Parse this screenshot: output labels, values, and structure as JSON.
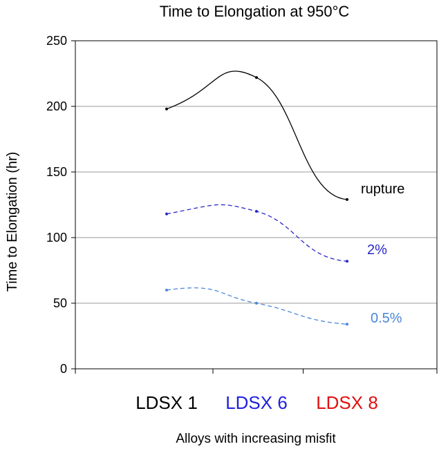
{
  "chart_data": {
    "type": "line",
    "title": "Time to Elongation at 950°C",
    "xlabel": "Alloys with increasing misfit",
    "ylabel": "Time to Elongation (hr)",
    "categories": [
      {
        "label": "LDSX 1",
        "color": "#000000"
      },
      {
        "label": "LDSX 6",
        "color": "#2020e0"
      },
      {
        "label": "LDSX 8",
        "color": "#e01010"
      }
    ],
    "ylim": [
      0,
      250
    ],
    "yticks": [
      "0",
      "50",
      "100",
      "150",
      "200",
      "250"
    ],
    "grid": true,
    "series": [
      {
        "name": "rupture",
        "values": [
          198,
          222,
          129
        ],
        "color": "#000000",
        "dash": "none"
      },
      {
        "name": "2%",
        "values": [
          118,
          120,
          82
        ],
        "color": "#2828c8",
        "dash": "6,4"
      },
      {
        "name": "0.5%",
        "values": [
          60,
          50,
          34
        ],
        "color": "#4a86d6",
        "dash": "6,4"
      }
    ]
  }
}
